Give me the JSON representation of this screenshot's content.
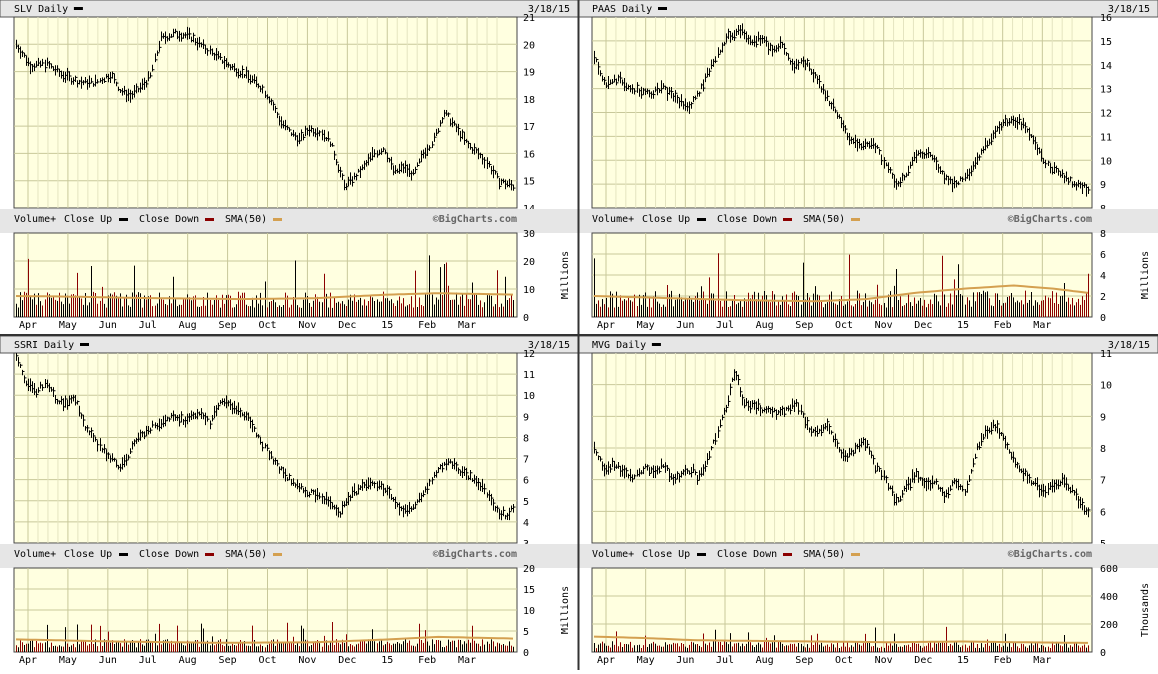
{
  "colors": {
    "plot_bg": "#ffffe0",
    "grid": "#c8c89a",
    "header_bg": "#e6e6e6",
    "frame": "#555555",
    "price_bar": "#000000",
    "close_up": "#000000",
    "close_down": "#8b0000",
    "sma": "#d4a050"
  },
  "chart_data": [
    {
      "type": "ohlc",
      "id": "slv",
      "title": "SLV Daily",
      "date": "3/18/15",
      "price_ylim": [
        14,
        21
      ],
      "price_ticks": [
        14,
        15,
        16,
        17,
        18,
        19,
        20,
        21
      ],
      "month_labels": [
        "Apr",
        "May",
        "Jun",
        "Jul",
        "Aug",
        "Sep",
        "Oct",
        "Nov",
        "Dec",
        "15",
        "Feb",
        "Mar"
      ],
      "price_path": [
        [
          0,
          20
        ],
        [
          0.03,
          19.2
        ],
        [
          0.06,
          19.3
        ],
        [
          0.09,
          18.9
        ],
        [
          0.13,
          18.6
        ],
        [
          0.16,
          18.6
        ],
        [
          0.19,
          18.9
        ],
        [
          0.21,
          18.3
        ],
        [
          0.23,
          18.1
        ],
        [
          0.25,
          18.4
        ],
        [
          0.27,
          18.8
        ],
        [
          0.29,
          20.2
        ],
        [
          0.32,
          20.4
        ],
        [
          0.35,
          20.3
        ],
        [
          0.37,
          20.0
        ],
        [
          0.4,
          19.6
        ],
        [
          0.43,
          19.2
        ],
        [
          0.46,
          18.9
        ],
        [
          0.49,
          18.5
        ],
        [
          0.51,
          18.0
        ],
        [
          0.53,
          17.2
        ],
        [
          0.55,
          16.8
        ],
        [
          0.57,
          16.5
        ],
        [
          0.59,
          16.9
        ],
        [
          0.61,
          16.8
        ],
        [
          0.63,
          16.5
        ],
        [
          0.65,
          15.4
        ],
        [
          0.66,
          14.8
        ],
        [
          0.68,
          15.1
        ],
        [
          0.7,
          15.5
        ],
        [
          0.72,
          16.0
        ],
        [
          0.74,
          16.2
        ],
        [
          0.76,
          15.3
        ],
        [
          0.78,
          15.5
        ],
        [
          0.8,
          15.2
        ],
        [
          0.82,
          16.0
        ],
        [
          0.84,
          16.5
        ],
        [
          0.86,
          17.5
        ],
        [
          0.87,
          17.3
        ],
        [
          0.89,
          16.8
        ],
        [
          0.91,
          16.3
        ],
        [
          0.93,
          16.0
        ],
        [
          0.95,
          15.6
        ],
        [
          0.97,
          15.0
        ],
        [
          1.0,
          14.8
        ]
      ],
      "volume_legend": [
        "Volume+",
        "Close Up",
        "Close Down",
        "SMA(50)"
      ],
      "watermark": "©BigCharts.com",
      "volume_unit": "Millions",
      "volume_ylim": [
        0,
        30
      ],
      "volume_ticks": [
        "0",
        "10",
        "20",
        "30"
      ],
      "volume_base": 6.5,
      "volume_sma_path": [
        [
          0,
          7.5
        ],
        [
          0.1,
          7.3
        ],
        [
          0.25,
          6.8
        ],
        [
          0.45,
          6.4
        ],
        [
          0.6,
          6.7
        ],
        [
          0.75,
          8.0
        ],
        [
          0.85,
          8.5
        ],
        [
          1.0,
          8.0
        ]
      ]
    },
    {
      "type": "ohlc",
      "id": "paas",
      "title": "PAAS Daily",
      "date": "3/18/15",
      "price_ylim": [
        8,
        16
      ],
      "price_ticks": [
        8,
        9,
        10,
        11,
        12,
        13,
        14,
        15,
        16
      ],
      "month_labels": [
        "Apr",
        "May",
        "Jun",
        "Jul",
        "Aug",
        "Sep",
        "Oct",
        "Nov",
        "Dec",
        "15",
        "Feb",
        "Mar"
      ],
      "price_path": [
        [
          0,
          14.3
        ],
        [
          0.02,
          13.2
        ],
        [
          0.05,
          13.4
        ],
        [
          0.08,
          13.0
        ],
        [
          0.11,
          12.8
        ],
        [
          0.14,
          13.0
        ],
        [
          0.17,
          12.5
        ],
        [
          0.19,
          12.2
        ],
        [
          0.21,
          12.7
        ],
        [
          0.23,
          13.6
        ],
        [
          0.25,
          14.5
        ],
        [
          0.27,
          15.2
        ],
        [
          0.3,
          15.4
        ],
        [
          0.32,
          15.0
        ],
        [
          0.34,
          15.1
        ],
        [
          0.36,
          14.6
        ],
        [
          0.38,
          14.9
        ],
        [
          0.4,
          14.0
        ],
        [
          0.43,
          14.1
        ],
        [
          0.46,
          13.0
        ],
        [
          0.49,
          12.0
        ],
        [
          0.52,
          10.8
        ],
        [
          0.55,
          10.6
        ],
        [
          0.57,
          10.6
        ],
        [
          0.59,
          9.8
        ],
        [
          0.61,
          9.0
        ],
        [
          0.63,
          9.3
        ],
        [
          0.65,
          10.2
        ],
        [
          0.67,
          10.3
        ],
        [
          0.69,
          10.0
        ],
        [
          0.71,
          9.2
        ],
        [
          0.73,
          9.0
        ],
        [
          0.75,
          9.3
        ],
        [
          0.77,
          9.8
        ],
        [
          0.79,
          10.6
        ],
        [
          0.81,
          11.2
        ],
        [
          0.83,
          11.6
        ],
        [
          0.85,
          11.7
        ],
        [
          0.87,
          11.5
        ],
        [
          0.89,
          10.8
        ],
        [
          0.91,
          10.0
        ],
        [
          0.93,
          9.6
        ],
        [
          0.95,
          9.3
        ],
        [
          0.97,
          9.0
        ],
        [
          1.0,
          8.8
        ]
      ],
      "volume_legend": [
        "Volume+",
        "Close Up",
        "Close Down",
        "SMA(50)"
      ],
      "watermark": "©BigCharts.com",
      "volume_unit": "Millions",
      "volume_ylim": [
        0,
        8
      ],
      "volume_ticks": [
        "0",
        "2",
        "4",
        "6",
        "8"
      ],
      "volume_base": 1.8,
      "volume_sma_path": [
        [
          0,
          2.0
        ],
        [
          0.15,
          1.8
        ],
        [
          0.3,
          1.6
        ],
        [
          0.45,
          1.5
        ],
        [
          0.55,
          1.7
        ],
        [
          0.65,
          2.3
        ],
        [
          0.75,
          2.7
        ],
        [
          0.85,
          3.0
        ],
        [
          0.93,
          2.7
        ],
        [
          1.0,
          2.3
        ]
      ]
    },
    {
      "type": "ohlc",
      "id": "ssri",
      "title": "SSRI Daily",
      "date": "3/18/15",
      "price_ylim": [
        3,
        12
      ],
      "price_ticks": [
        3,
        4,
        5,
        6,
        7,
        8,
        9,
        10,
        11,
        12
      ],
      "month_labels": [
        "Apr",
        "May",
        "Jun",
        "Jul",
        "Aug",
        "Sep",
        "Oct",
        "Nov",
        "Dec",
        "15",
        "Feb",
        "Mar"
      ],
      "price_path": [
        [
          0,
          11.8
        ],
        [
          0.02,
          10.5
        ],
        [
          0.04,
          10.2
        ],
        [
          0.06,
          10.6
        ],
        [
          0.08,
          9.8
        ],
        [
          0.1,
          9.6
        ],
        [
          0.12,
          9.8
        ],
        [
          0.14,
          8.5
        ],
        [
          0.16,
          7.8
        ],
        [
          0.18,
          7.3
        ],
        [
          0.2,
          6.8
        ],
        [
          0.21,
          6.5
        ],
        [
          0.23,
          7.4
        ],
        [
          0.25,
          8.1
        ],
        [
          0.28,
          8.6
        ],
        [
          0.31,
          9.0
        ],
        [
          0.34,
          8.8
        ],
        [
          0.37,
          9.1
        ],
        [
          0.39,
          8.7
        ],
        [
          0.41,
          9.8
        ],
        [
          0.43,
          9.5
        ],
        [
          0.45,
          9.3
        ],
        [
          0.47,
          8.8
        ],
        [
          0.49,
          7.9
        ],
        [
          0.51,
          7.2
        ],
        [
          0.53,
          6.5
        ],
        [
          0.55,
          6.0
        ],
        [
          0.57,
          5.6
        ],
        [
          0.59,
          5.4
        ],
        [
          0.61,
          5.2
        ],
        [
          0.63,
          5.0
        ],
        [
          0.65,
          4.4
        ],
        [
          0.67,
          5.2
        ],
        [
          0.69,
          5.6
        ],
        [
          0.71,
          5.9
        ],
        [
          0.73,
          5.8
        ],
        [
          0.75,
          5.4
        ],
        [
          0.77,
          4.5
        ],
        [
          0.79,
          4.6
        ],
        [
          0.81,
          5.0
        ],
        [
          0.83,
          5.8
        ],
        [
          0.85,
          6.5
        ],
        [
          0.87,
          6.9
        ],
        [
          0.89,
          6.4
        ],
        [
          0.91,
          6.2
        ],
        [
          0.93,
          5.9
        ],
        [
          0.95,
          5.2
        ],
        [
          0.97,
          4.5
        ],
        [
          0.985,
          4.3
        ],
        [
          1.0,
          4.7
        ]
      ],
      "volume_legend": [
        "Volume+",
        "Close Up",
        "Close Down",
        "SMA(50)"
      ],
      "watermark": "©BigCharts.com",
      "volume_unit": "Millions",
      "volume_ylim": [
        0,
        20
      ],
      "volume_ticks": [
        "0",
        "5",
        "10",
        "15",
        "20"
      ],
      "volume_base": 2.2,
      "volume_sma_path": [
        [
          0,
          3.0
        ],
        [
          0.2,
          2.5
        ],
        [
          0.4,
          2.2
        ],
        [
          0.6,
          2.3
        ],
        [
          0.75,
          3.0
        ],
        [
          0.85,
          3.6
        ],
        [
          1.0,
          3.2
        ]
      ]
    },
    {
      "type": "ohlc",
      "id": "mvg",
      "title": "MVG Daily",
      "date": "3/18/15",
      "price_ylim": [
        5,
        11
      ],
      "price_ticks": [
        5,
        6,
        7,
        8,
        9,
        10,
        11
      ],
      "month_labels": [
        "Apr",
        "May",
        "Jun",
        "Jul",
        "Aug",
        "Sep",
        "Oct",
        "Nov",
        "Dec",
        "15",
        "Feb",
        "Mar"
      ],
      "price_path": [
        [
          0,
          8.0
        ],
        [
          0.02,
          7.3
        ],
        [
          0.04,
          7.5
        ],
        [
          0.06,
          7.2
        ],
        [
          0.08,
          7.1
        ],
        [
          0.1,
          7.4
        ],
        [
          0.12,
          7.2
        ],
        [
          0.14,
          7.5
        ],
        [
          0.16,
          7.0
        ],
        [
          0.18,
          7.2
        ],
        [
          0.2,
          7.3
        ],
        [
          0.21,
          7.0
        ],
        [
          0.23,
          7.6
        ],
        [
          0.25,
          8.5
        ],
        [
          0.27,
          9.5
        ],
        [
          0.28,
          10.2
        ],
        [
          0.29,
          10.3
        ],
        [
          0.3,
          9.4
        ],
        [
          0.33,
          9.3
        ],
        [
          0.36,
          9.1
        ],
        [
          0.39,
          9.2
        ],
        [
          0.41,
          9.4
        ],
        [
          0.43,
          8.7
        ],
        [
          0.45,
          8.5
        ],
        [
          0.47,
          8.7
        ],
        [
          0.49,
          8.1
        ],
        [
          0.51,
          7.7
        ],
        [
          0.53,
          8.0
        ],
        [
          0.55,
          8.2
        ],
        [
          0.57,
          7.4
        ],
        [
          0.59,
          7.0
        ],
        [
          0.61,
          6.3
        ],
        [
          0.63,
          6.7
        ],
        [
          0.65,
          7.2
        ],
        [
          0.67,
          6.8
        ],
        [
          0.69,
          7.0
        ],
        [
          0.71,
          6.5
        ],
        [
          0.73,
          6.9
        ],
        [
          0.75,
          6.6
        ],
        [
          0.77,
          7.8
        ],
        [
          0.79,
          8.5
        ],
        [
          0.81,
          8.7
        ],
        [
          0.83,
          8.3
        ],
        [
          0.85,
          7.6
        ],
        [
          0.87,
          7.2
        ],
        [
          0.89,
          6.9
        ],
        [
          0.91,
          6.6
        ],
        [
          0.93,
          6.8
        ],
        [
          0.95,
          7.0
        ],
        [
          0.97,
          6.6
        ],
        [
          0.99,
          6.1
        ],
        [
          1.0,
          6.0
        ]
      ],
      "volume_legend": [
        "Volume+",
        "Close Up",
        "Close Down",
        "SMA(50)"
      ],
      "watermark": "©BigCharts.com",
      "volume_unit": "Thousands",
      "volume_ylim": [
        0,
        600
      ],
      "volume_ticks": [
        "0",
        "200",
        "400",
        "600"
      ],
      "volume_base": 55,
      "volume_sma_path": [
        [
          0,
          110
        ],
        [
          0.1,
          100
        ],
        [
          0.2,
          85
        ],
        [
          0.3,
          80
        ],
        [
          0.45,
          75
        ],
        [
          0.6,
          70
        ],
        [
          0.75,
          75
        ],
        [
          0.85,
          70
        ],
        [
          1.0,
          65
        ]
      ]
    }
  ]
}
